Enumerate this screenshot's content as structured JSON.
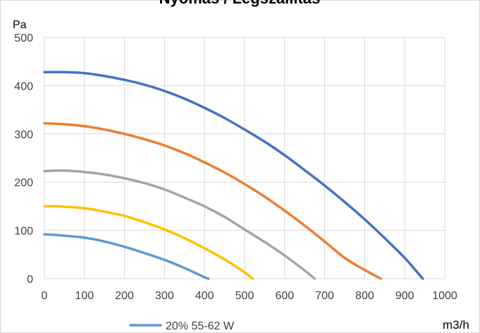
{
  "chart_data": {
    "type": "line",
    "title": "Nyomás / Légszállítás",
    "xlabel": "m3/h",
    "ylabel": "Pa",
    "xlim": [
      0,
      1000
    ],
    "ylim": [
      0,
      500
    ],
    "xticks": [
      0,
      100,
      200,
      300,
      400,
      500,
      600,
      700,
      800,
      900,
      1000
    ],
    "yticks": [
      0,
      100,
      200,
      300,
      400,
      500
    ],
    "grid": true,
    "legend_position": "bottom",
    "series": [
      {
        "name": "20% 55-62 W",
        "color": "#5b9bd5",
        "x": [
          0,
          20,
          50,
          100,
          150,
          200,
          250,
          300,
          350,
          400,
          410
        ],
        "y": [
          92,
          91,
          89,
          85,
          77,
          66,
          53,
          39,
          22,
          3,
          0
        ]
      },
      {
        "color": "#ffc000",
        "x": [
          0,
          25,
          50,
          100,
          150,
          200,
          250,
          300,
          350,
          400,
          450,
          500,
          520
        ],
        "y": [
          150,
          150,
          149,
          146,
          139,
          130,
          117,
          102,
          84,
          63,
          40,
          13,
          0
        ]
      },
      {
        "color": "#a5a5a5",
        "x": [
          0,
          50,
          100,
          150,
          200,
          250,
          300,
          350,
          400,
          450,
          500,
          550,
          600,
          650,
          675
        ],
        "y": [
          223,
          224,
          221,
          216,
          208,
          198,
          185,
          168,
          150,
          128,
          102,
          76,
          48,
          17,
          0
        ]
      },
      {
        "color": "#ed7d31",
        "x": [
          0,
          50,
          100,
          150,
          200,
          250,
          300,
          350,
          400,
          450,
          500,
          550,
          600,
          650,
          700,
          750,
          800,
          840
        ],
        "y": [
          322,
          320,
          316,
          309,
          300,
          289,
          276,
          260,
          241,
          220,
          196,
          170,
          141,
          110,
          77,
          43,
          18,
          0
        ]
      },
      {
        "color": "#4472c4",
        "x": [
          0,
          50,
          100,
          150,
          200,
          250,
          300,
          350,
          400,
          450,
          500,
          550,
          600,
          650,
          700,
          750,
          800,
          850,
          900,
          945
        ],
        "y": [
          428,
          428,
          426,
          420,
          412,
          402,
          389,
          373,
          354,
          333,
          309,
          284,
          256,
          225,
          193,
          159,
          123,
          84,
          43,
          0
        ]
      }
    ]
  }
}
